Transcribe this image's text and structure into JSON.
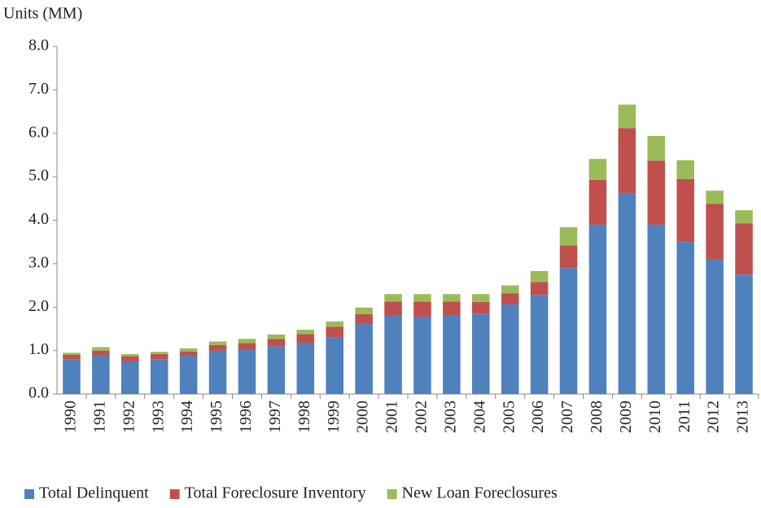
{
  "chart_data": {
    "type": "stacked_bar",
    "y_label": "Units (MM)",
    "categories": [
      "1990",
      "1991",
      "1992",
      "1993",
      "1994",
      "1995",
      "1996",
      "1997",
      "1998",
      "1999",
      "2000",
      "2001",
      "2002",
      "2003",
      "2004",
      "2005",
      "2006",
      "2007",
      "2008",
      "2009",
      "2010",
      "2011",
      "2012",
      "2013"
    ],
    "series": [
      {
        "name": "Total Delinquent",
        "color": "#4f81bd",
        "values": [
          0.8,
          0.9,
          0.75,
          0.8,
          0.88,
          1.0,
          1.02,
          1.1,
          1.18,
          1.3,
          1.62,
          1.8,
          1.78,
          1.8,
          1.85,
          2.07,
          2.28,
          2.9,
          3.9,
          4.62,
          3.9,
          3.5,
          3.1,
          2.75
        ]
      },
      {
        "name": "Total Foreclosure Inventory",
        "color": "#c0504d",
        "values": [
          0.1,
          0.1,
          0.12,
          0.12,
          0.1,
          0.13,
          0.15,
          0.17,
          0.2,
          0.25,
          0.22,
          0.33,
          0.35,
          0.33,
          0.27,
          0.25,
          0.3,
          0.52,
          1.03,
          1.5,
          1.47,
          1.45,
          1.28,
          1.18
        ]
      },
      {
        "name": "New Loan Foreclosures",
        "color": "#9bbb59",
        "values": [
          0.05,
          0.08,
          0.05,
          0.05,
          0.07,
          0.08,
          0.1,
          0.1,
          0.1,
          0.12,
          0.15,
          0.17,
          0.17,
          0.17,
          0.18,
          0.18,
          0.25,
          0.42,
          0.48,
          0.54,
          0.57,
          0.43,
          0.3,
          0.3
        ]
      }
    ],
    "ylim": [
      0,
      8
    ],
    "yticks": [
      {
        "value": 0,
        "label": "0.0"
      },
      {
        "value": 1,
        "label": "1.0"
      },
      {
        "value": 2,
        "label": "2.0"
      },
      {
        "value": 3,
        "label": "3.0"
      },
      {
        "value": 4,
        "label": "4.0"
      },
      {
        "value": 5,
        "label": "5.0"
      },
      {
        "value": 6,
        "label": "6.0"
      },
      {
        "value": 7,
        "label": "7.0"
      },
      {
        "value": 8,
        "label": "8.0"
      }
    ],
    "legend": "bottom"
  }
}
